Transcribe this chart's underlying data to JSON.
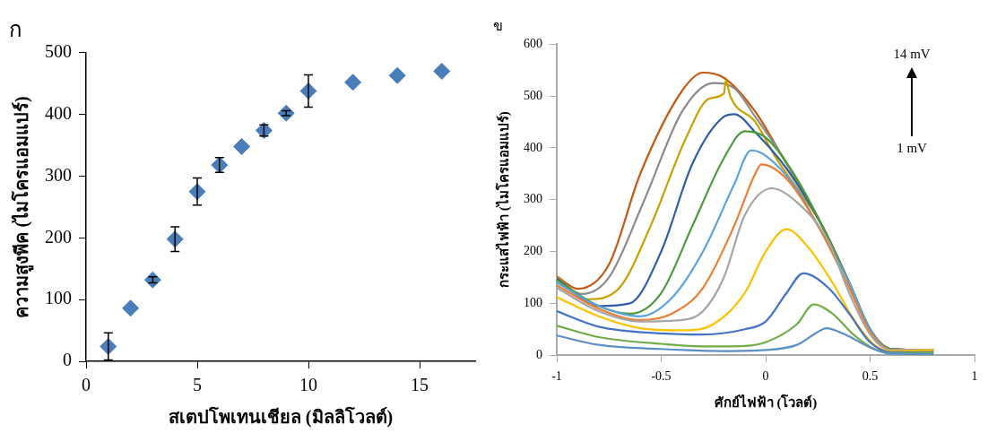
{
  "chart_data": [
    {
      "type": "scatter",
      "title": "ก",
      "xlabel": "สเตปโพเทนเชียล (มิลลิโวลต์)",
      "ylabel": "ความสูงพีค (ไมโครแอมแปร์)",
      "x": [
        1,
        2,
        3,
        4,
        5,
        6,
        7,
        8,
        9,
        10,
        12,
        14,
        16
      ],
      "series": [
        {
          "color": "#4a7ebb",
          "values": [
            24,
            86,
            132,
            198,
            275,
            318,
            348,
            374,
            402,
            438,
            452,
            463,
            470
          ],
          "errors": [
            22,
            null,
            5,
            20,
            22,
            12,
            null,
            9,
            4,
            26,
            null,
            null,
            null
          ]
        }
      ],
      "xlim": [
        0,
        17.5
      ],
      "xticks": [
        0,
        5,
        10,
        15
      ],
      "ylim": [
        0,
        500
      ],
      "yticks": [
        0,
        100,
        200,
        300,
        400,
        500
      ],
      "grid": false,
      "legend": false,
      "marker": "diamond"
    },
    {
      "type": "line",
      "title": "ข",
      "xlabel": "ศักย์ไฟฟ้า (โวลต์)",
      "ylabel": "กระแสไฟฟ้า (ไมโครแอมแปร์)",
      "annotations": [
        "14 mV",
        "1 mV"
      ],
      "series": [
        {
          "color": "#5b8fc7",
          "x": [
            -1,
            -0.8,
            -0.5,
            -0.2,
            0,
            0.15,
            0.25,
            0.29,
            0.38,
            0.5,
            0.6,
            0.8
          ],
          "values": [
            38,
            20,
            12,
            8,
            10,
            20,
            45,
            52,
            40,
            15,
            3,
            2
          ]
        },
        {
          "color": "#70ad47",
          "x": [
            -1,
            -0.8,
            -0.5,
            -0.3,
            -0.1,
            0,
            0.15,
            0.23,
            0.32,
            0.42,
            0.52,
            0.6,
            0.8
          ],
          "values": [
            57,
            35,
            22,
            17,
            18,
            25,
            60,
            98,
            80,
            40,
            12,
            4,
            5
          ]
        },
        {
          "color": "#4472c4",
          "x": [
            -1,
            -0.8,
            -0.5,
            -0.3,
            -0.1,
            0,
            0.1,
            0.18,
            0.3,
            0.4,
            0.5,
            0.6,
            0.8
          ],
          "values": [
            85,
            55,
            42,
            40,
            50,
            65,
            120,
            158,
            130,
            80,
            25,
            6,
            6
          ]
        },
        {
          "color": "#ffc000",
          "x": [
            -1,
            -0.8,
            -0.6,
            -0.4,
            -0.25,
            -0.1,
            0,
            0.1,
            0.2,
            0.32,
            0.42,
            0.52,
            0.6,
            0.8
          ],
          "values": [
            112,
            75,
            52,
            48,
            60,
            120,
            200,
            243,
            210,
            140,
            70,
            20,
            8,
            10
          ]
        },
        {
          "color": "#a5a5a5",
          "x": [
            -1,
            -0.8,
            -0.6,
            -0.4,
            -0.3,
            -0.2,
            -0.1,
            0.03,
            0.15,
            0.3,
            0.4,
            0.5,
            0.6,
            0.8
          ],
          "values": [
            130,
            85,
            65,
            68,
            85,
            150,
            270,
            322,
            295,
            220,
            120,
            40,
            10,
            10
          ]
        },
        {
          "color": "#ed7d31",
          "x": [
            -1,
            -0.8,
            -0.6,
            -0.45,
            -0.3,
            -0.15,
            -0.05,
            -0.02,
            0.1,
            0.25,
            0.4,
            0.5,
            0.6,
            0.8
          ],
          "values": [
            135,
            90,
            68,
            80,
            130,
            250,
            350,
            368,
            340,
            250,
            130,
            45,
            10,
            10
          ]
        },
        {
          "color": "#5ba3dc",
          "x": [
            -1,
            -0.8,
            -0.6,
            -0.45,
            -0.3,
            -0.15,
            -0.07,
            0,
            0.15,
            0.25,
            0.4,
            0.5,
            0.6,
            0.8
          ],
          "values": [
            140,
            95,
            75,
            110,
            200,
            330,
            395,
            385,
            320,
            250,
            140,
            50,
            10,
            10
          ]
        },
        {
          "color": "#4e9a3a",
          "x": [
            -1,
            -0.8,
            -0.65,
            -0.5,
            -0.35,
            -0.2,
            -0.1,
            0,
            0.15,
            0.27,
            0.4,
            0.5,
            0.6,
            0.8
          ],
          "values": [
            145,
            95,
            80,
            120,
            250,
            380,
            432,
            420,
            340,
            250,
            140,
            50,
            12,
            10
          ]
        },
        {
          "color": "#2f5ea8",
          "x": [
            -1,
            -0.8,
            -0.65,
            -0.5,
            -0.35,
            -0.2,
            -0.15,
            -0.05,
            0.1,
            0.27,
            0.4,
            0.5,
            0.6,
            0.8
          ],
          "values": [
            148,
            95,
            100,
            200,
            370,
            460,
            465,
            430,
            360,
            250,
            140,
            50,
            12,
            10
          ]
        },
        {
          "color": "#c9a000",
          "x": [
            -1,
            -0.85,
            -0.7,
            -0.55,
            -0.38,
            -0.27,
            -0.2,
            -0.19,
            -0.17,
            -0.05,
            0.05,
            0.27,
            0.4,
            0.5,
            0.6,
            0.8
          ],
          "values": [
            150,
            108,
            130,
            250,
            420,
            495,
            505,
            530,
            500,
            450,
            380,
            250,
            140,
            50,
            12,
            10
          ]
        },
        {
          "color": "#8c8c8c",
          "x": [
            -1,
            -0.88,
            -0.75,
            -0.58,
            -0.4,
            -0.25,
            -0.15,
            -0.05,
            0.07,
            0.27,
            0.4,
            0.5,
            0.6,
            0.8
          ],
          "values": [
            150,
            118,
            150,
            300,
            470,
            525,
            515,
            460,
            390,
            250,
            140,
            50,
            12,
            10
          ]
        },
        {
          "color": "#c55a11",
          "x": [
            -1,
            -0.9,
            -0.75,
            -0.6,
            -0.4,
            -0.3,
            -0.2,
            -0.05,
            0.07,
            0.27,
            0.4,
            0.5,
            0.6,
            0.8
          ],
          "values": [
            152,
            128,
            175,
            350,
            510,
            545,
            535,
            470,
            390,
            250,
            140,
            50,
            12,
            10
          ]
        }
      ],
      "xlim": [
        -1,
        1
      ],
      "xticks": [
        -1,
        -0.5,
        0,
        0.5,
        1
      ],
      "ylim": [
        0,
        600
      ],
      "yticks": [
        0,
        100,
        200,
        300,
        400,
        500,
        600
      ],
      "grid": false,
      "legend": false,
      "marker": "none",
      "line_style": "solid"
    }
  ]
}
